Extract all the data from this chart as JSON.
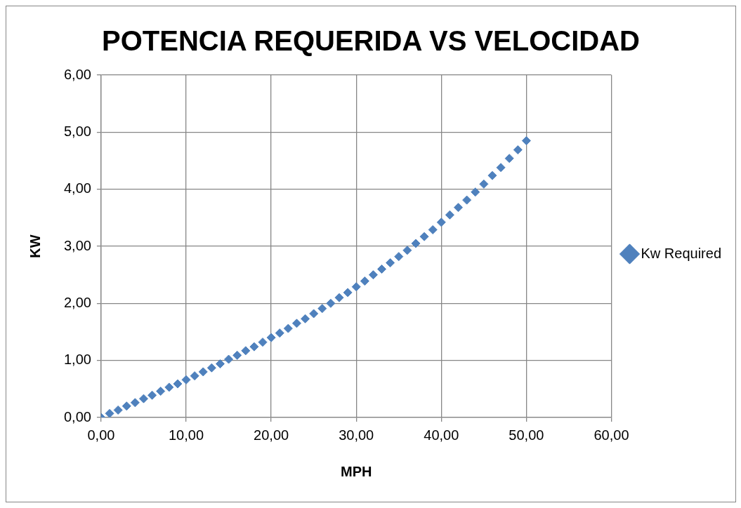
{
  "chart_data": {
    "type": "scatter",
    "title": "POTENCIA REQUERIDA VS VELOCIDAD",
    "xlabel": "MPH",
    "ylabel": "KW",
    "x": [
      0,
      1,
      2,
      3,
      4,
      5,
      6,
      7,
      8,
      9,
      10,
      11,
      12,
      13,
      14,
      15,
      16,
      17,
      18,
      19,
      20,
      21,
      22,
      23,
      24,
      25,
      26,
      27,
      28,
      29,
      30,
      31,
      32,
      33,
      34,
      35,
      36,
      37,
      38,
      39,
      40,
      41,
      42,
      43,
      44,
      45,
      46,
      47,
      48,
      49,
      50
    ],
    "series": [
      {
        "name": "Kw Required",
        "color": "#4f81bd",
        "values": [
          0,
          0.07,
          0.13,
          0.2,
          0.26,
          0.33,
          0.39,
          0.46,
          0.53,
          0.59,
          0.66,
          0.73,
          0.8,
          0.87,
          0.94,
          1.02,
          1.09,
          1.17,
          1.24,
          1.32,
          1.4,
          1.48,
          1.56,
          1.65,
          1.73,
          1.82,
          1.91,
          2.0,
          2.1,
          2.19,
          2.29,
          2.39,
          2.5,
          2.6,
          2.71,
          2.82,
          2.93,
          3.05,
          3.17,
          3.29,
          3.42,
          3.55,
          3.68,
          3.81,
          3.95,
          4.09,
          4.24,
          4.38,
          4.54,
          4.69,
          4.85
        ]
      }
    ],
    "xlim": [
      0,
      60
    ],
    "xticks": [
      {
        "value": 0,
        "label": "0,00"
      },
      {
        "value": 10,
        "label": "10,00"
      },
      {
        "value": 20,
        "label": "20,00"
      },
      {
        "value": 30,
        "label": "30,00"
      },
      {
        "value": 40,
        "label": "40,00"
      },
      {
        "value": 50,
        "label": "50,00"
      },
      {
        "value": 60,
        "label": "60,00"
      }
    ],
    "ylim": [
      0,
      6
    ],
    "yticks": [
      {
        "value": 0,
        "label": "0,00"
      },
      {
        "value": 1,
        "label": "1,00"
      },
      {
        "value": 2,
        "label": "2,00"
      },
      {
        "value": 3,
        "label": "3,00"
      },
      {
        "value": 4,
        "label": "4,00"
      },
      {
        "value": 5,
        "label": "5,00"
      },
      {
        "value": 6,
        "label": "6,00"
      }
    ],
    "grid": true,
    "legend": "right",
    "marker": "diamond"
  }
}
